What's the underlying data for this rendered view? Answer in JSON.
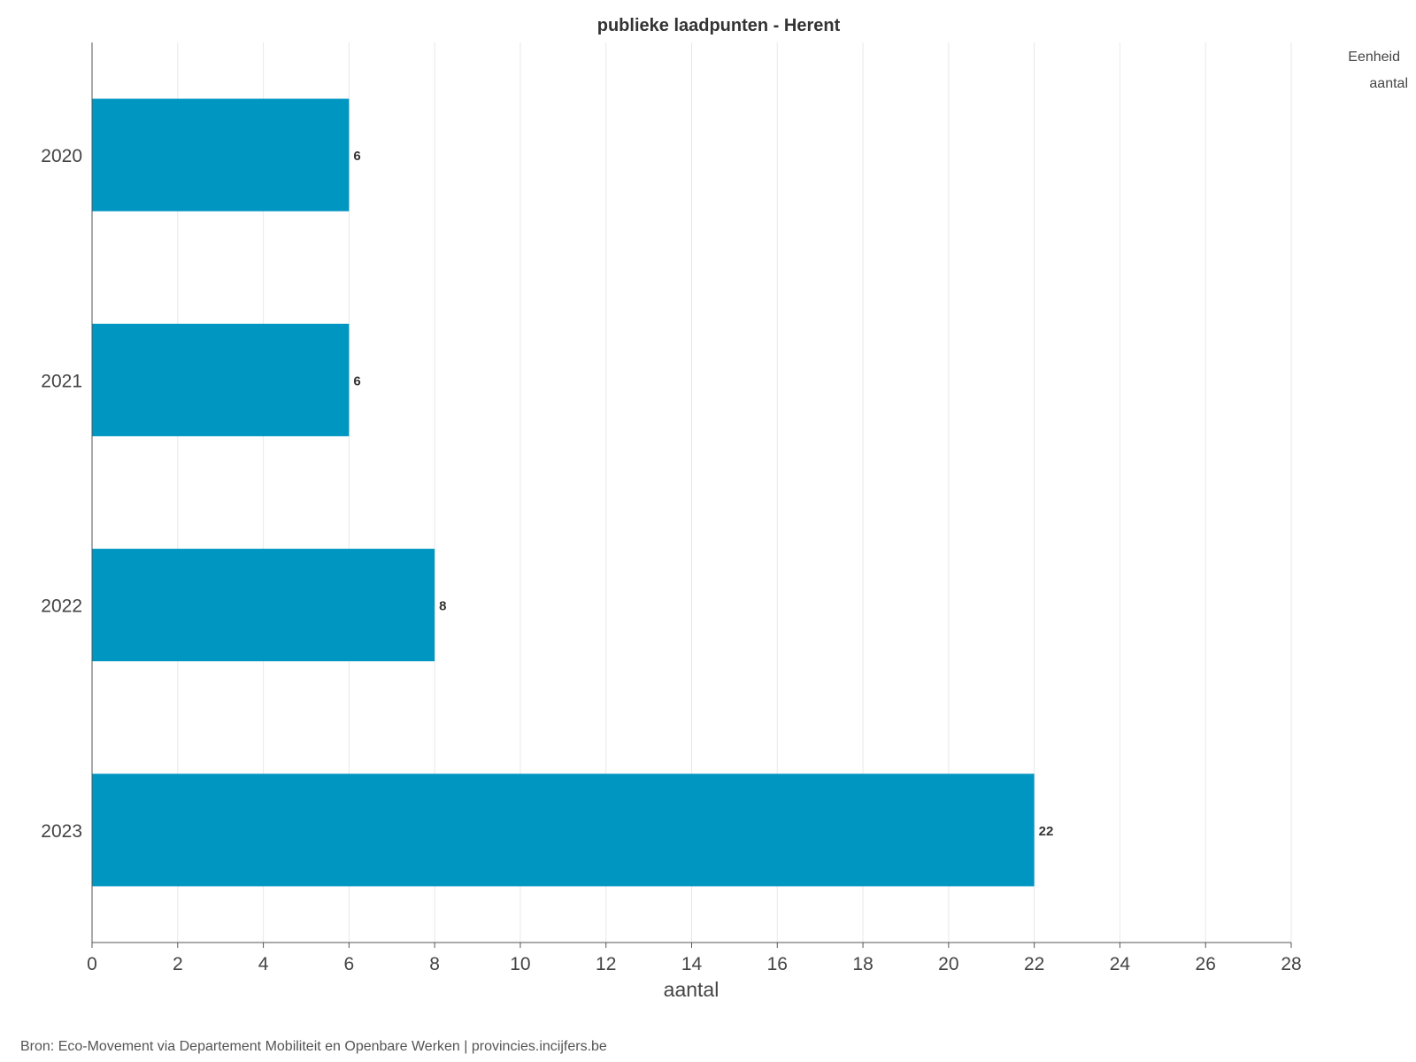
{
  "chart_data": {
    "type": "bar",
    "orientation": "horizontal",
    "title": "publieke laadpunten - Herent",
    "categories": [
      "2020",
      "2021",
      "2022",
      "2023"
    ],
    "values": [
      6,
      6,
      8,
      22
    ],
    "data_labels": [
      "6",
      "6",
      "8",
      "22"
    ],
    "xlabel": "aantal",
    "ylabel": "",
    "xlim": [
      0,
      28
    ],
    "x_ticks": [
      0,
      2,
      4,
      6,
      8,
      10,
      12,
      14,
      16,
      18,
      20,
      22,
      24,
      26,
      28
    ],
    "grid": "vertical",
    "legend": {
      "title": "Eenheid",
      "entries": [
        "aantal"
      ],
      "placement": "top-right"
    },
    "colors": {
      "bar": "#0096c2",
      "grid": "#e8e8e8",
      "axis": "#555555"
    }
  },
  "source": "Bron: Eco-Movement via Departement Mobiliteit en Openbare Werken | provincies.incijfers.be"
}
